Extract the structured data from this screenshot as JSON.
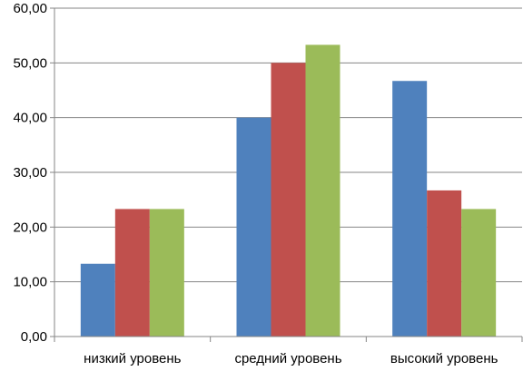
{
  "chart_data": {
    "type": "bar",
    "categories": [
      "низкий уровень",
      "средний уровень",
      "высокий уровень"
    ],
    "series": [
      {
        "values": [
          13.3,
          40.0,
          46.7
        ],
        "color": "#4F81BD"
      },
      {
        "values": [
          23.3,
          50.0,
          26.7
        ],
        "color": "#C0504D"
      },
      {
        "values": [
          23.3,
          53.3,
          23.3
        ],
        "color": "#9BBB59"
      }
    ],
    "yticks": [
      "0,00",
      "10,00",
      "20,00",
      "30,00",
      "40,00",
      "50,00",
      "60,00"
    ],
    "ylim": [
      0,
      60
    ],
    "grid": true,
    "legend": "none",
    "title": "",
    "xlabel": "",
    "ylabel": ""
  }
}
